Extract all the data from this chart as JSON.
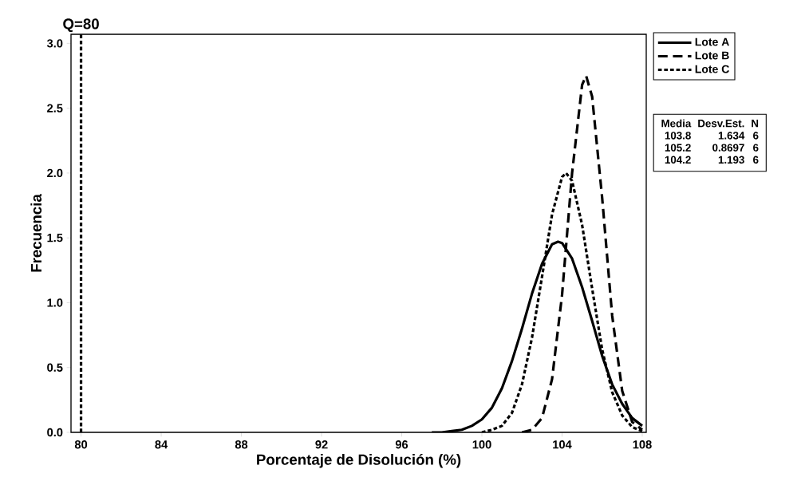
{
  "chart_data": {
    "type": "line",
    "xlabel": "Porcentaje de Disolución (%)",
    "ylabel": "Frecuencia",
    "xlim": [
      79.5,
      108.2
    ],
    "ylim": [
      0,
      3.07
    ],
    "xticks": [
      80,
      84,
      88,
      92,
      96,
      100,
      104,
      108
    ],
    "yticks": [
      {
        "value": 0,
        "label": "0.0"
      },
      {
        "value": 0.5,
        "label": "0.5"
      },
      {
        "value": 1,
        "label": "1.0"
      },
      {
        "value": 1.5,
        "label": "1.5"
      },
      {
        "value": 2,
        "label": "2.0"
      },
      {
        "value": 2.5,
        "label": "2.5"
      },
      {
        "value": 3,
        "label": "3.0"
      }
    ],
    "grid": false,
    "legend": "top right",
    "marker": "none",
    "series": [
      {
        "name": "Lote A",
        "color": "#000000",
        "line_style": "solid",
        "x": [
          97.5,
          98,
          98.5,
          99,
          99.5,
          100,
          100.5,
          101,
          101.5,
          102,
          102.5,
          103,
          103.5,
          103.8,
          104,
          104.5,
          105,
          105.5,
          106,
          106.5,
          107,
          107.5,
          108
        ],
        "values": [
          0.0,
          0.0,
          0.01,
          0.02,
          0.05,
          0.1,
          0.19,
          0.34,
          0.55,
          0.8,
          1.07,
          1.3,
          1.45,
          1.47,
          1.46,
          1.34,
          1.12,
          0.86,
          0.59,
          0.37,
          0.22,
          0.11,
          0.05
        ]
      },
      {
        "name": "Lote B",
        "color": "#000000",
        "line_style": "dashed",
        "x": [
          102,
          102.5,
          103,
          103.5,
          104,
          104.5,
          105,
          105.2,
          105.5,
          106,
          106.5,
          107,
          107.5,
          108
        ],
        "values": [
          0.0,
          0.02,
          0.11,
          0.41,
          1.06,
          2.0,
          2.68,
          2.75,
          2.59,
          1.81,
          0.9,
          0.32,
          0.08,
          0.02
        ]
      },
      {
        "name": "Lote C",
        "color": "#000000",
        "line_style": "dotted",
        "x": [
          100,
          100.5,
          101,
          101.5,
          102,
          102.5,
          103,
          103.5,
          104,
          104.2,
          104.5,
          105,
          105.5,
          106,
          106.5,
          107,
          107.5,
          108
        ],
        "values": [
          0.0,
          0.02,
          0.05,
          0.15,
          0.37,
          0.73,
          1.2,
          1.68,
          1.97,
          2.0,
          1.94,
          1.6,
          1.11,
          0.64,
          0.31,
          0.13,
          0.04,
          0.01
        ]
      }
    ],
    "ref_lines": [
      {
        "axis": "x",
        "value": 80,
        "label": "Q=80",
        "color": "#000000",
        "line_style": "dotted"
      }
    ],
    "annotations": [
      "Media",
      "Desv.Est.",
      "N",
      "103.8",
      "1.634",
      "6",
      "105.2",
      "0.8697",
      "6",
      "104.2",
      "1.193",
      "6"
    ]
  }
}
